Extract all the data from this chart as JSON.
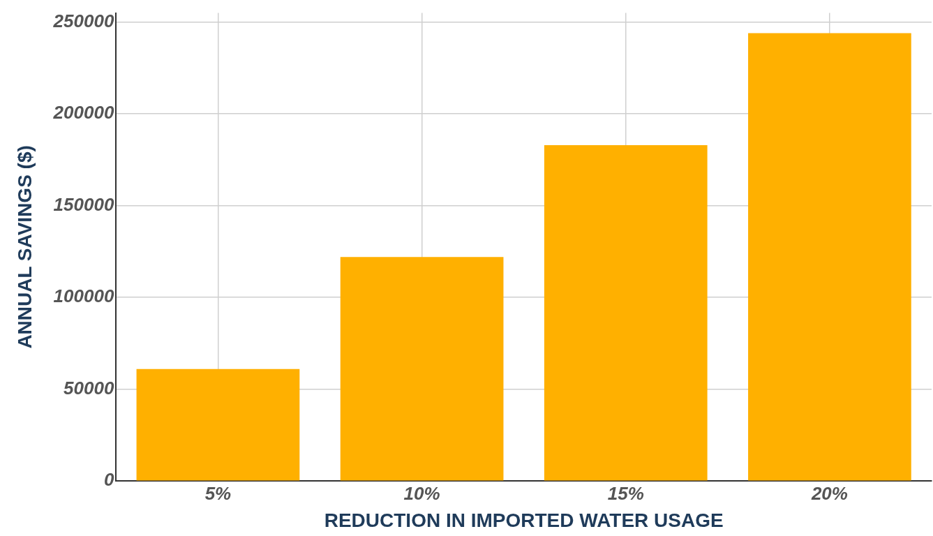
{
  "chart_data": {
    "type": "bar",
    "xlabel": "REDUCTION IN IMPORTED WATER USAGE",
    "ylabel": "ANNUAL SAVINGS ($)",
    "categories": [
      "5%",
      "10%",
      "15%",
      "20%"
    ],
    "values": [
      61000,
      122000,
      183000,
      244000
    ],
    "color": "#ffb000",
    "ylim": [
      0,
      255000
    ],
    "yticks": [
      0,
      50000,
      100000,
      150000,
      200000,
      250000
    ],
    "grid": true
  }
}
